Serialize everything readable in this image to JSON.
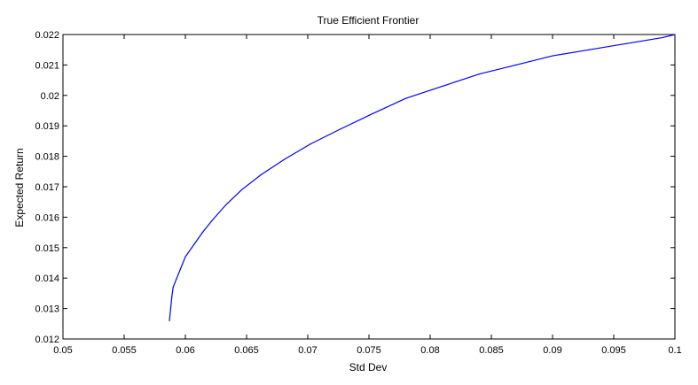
{
  "chart_data": {
    "type": "line",
    "title": "True Efficient Frontier",
    "xlabel": "Std Dev",
    "ylabel": "Expected Return",
    "xlim": [
      0.05,
      0.1
    ],
    "ylim": [
      0.012,
      0.022
    ],
    "xticks": [
      "0.05",
      "0.055",
      "0.06",
      "0.065",
      "0.07",
      "0.075",
      "0.08",
      "0.085",
      "0.09",
      "0.095",
      "0.1"
    ],
    "yticks": [
      "0.012",
      "0.013",
      "0.014",
      "0.015",
      "0.016",
      "0.017",
      "0.018",
      "0.019",
      "0.02",
      "0.021",
      "0.022"
    ],
    "grid": false,
    "legend": "none",
    "series": [
      {
        "color": "#0000ff",
        "x": [
          0.0587,
          0.0588,
          0.0589,
          0.059,
          0.0593,
          0.0596,
          0.06,
          0.0607,
          0.0614,
          0.0622,
          0.0633,
          0.0646,
          0.0662,
          0.0681,
          0.0702,
          0.0727,
          0.0753,
          0.078,
          0.081,
          0.084,
          0.087,
          0.09,
          0.093,
          0.096,
          0.099,
          0.1
        ],
        "y": [
          0.0126,
          0.013,
          0.0134,
          0.0137,
          0.014,
          0.0143,
          0.0147,
          0.0151,
          0.0155,
          0.0159,
          0.0164,
          0.0169,
          0.0174,
          0.0179,
          0.0184,
          0.0189,
          0.0194,
          0.0199,
          0.0203,
          0.0207,
          0.021,
          0.0213,
          0.0215,
          0.0217,
          0.0219,
          0.022
        ]
      }
    ]
  }
}
